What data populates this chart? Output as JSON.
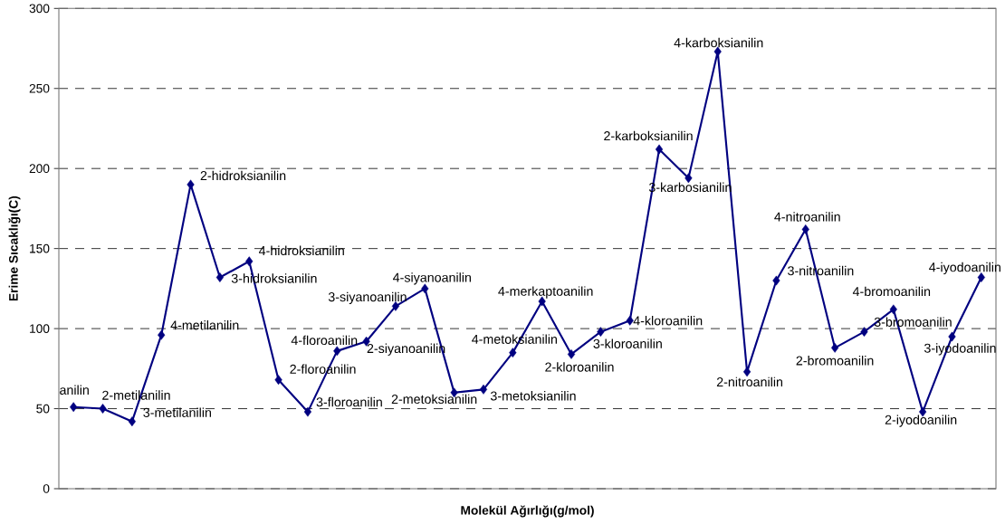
{
  "chart_data": {
    "type": "line",
    "xlabel": "Molekül Ağırlığı(g/mol)",
    "ylabel": "Erime Sıcaklığı(C)",
    "categories": [
      null,
      null,
      null,
      null,
      null,
      null,
      null,
      null,
      null,
      null,
      null,
      null,
      null,
      null,
      null,
      null,
      null,
      null,
      null,
      null,
      null,
      null,
      null,
      null,
      null,
      null,
      null,
      null,
      null,
      null,
      null,
      null
    ],
    "series": [
      {
        "color": "#000080",
        "values": [
          51,
          50,
          42,
          96,
          190,
          132,
          142,
          68,
          48,
          86,
          92,
          114,
          125,
          60,
          62,
          85,
          117,
          84,
          98,
          105,
          212,
          194,
          273,
          73,
          130,
          162,
          88,
          98,
          112,
          48,
          95,
          132
        ]
      }
    ],
    "ylim": [
      0,
      300
    ],
    "yticks": [
      0,
      50,
      100,
      150,
      200,
      250,
      300
    ],
    "grid": "y",
    "marker": "diamond",
    "line_style": "solid",
    "annotations": [
      "anilin",
      "2-metilanilin",
      "3-metilanilin",
      "4-metilanilin",
      "2-hidroksianilin",
      "3-hidroksianilin",
      "4-hidroksianilin",
      "2-floroanilin",
      "3-floroanilin",
      "4-floroanilin",
      "2-siyanoanilin",
      "3-siyanoanilin",
      "4-siyanoanilin",
      "2-metoksianilin",
      "3-metoksianilin",
      "4-metoksianilin",
      "4-merkaptoanilin",
      "2-kloroanilin",
      "3-kloroanilin",
      "4-kloroanilin",
      "2-karboksianilin",
      "3-karbosianilin",
      "4-karboksianilin",
      "2-nitroanilin",
      "3-nitroanilin",
      "4-nitroanilin",
      "2-bromoanilin",
      "3-bromoanilin",
      "4-bromoanilin",
      "2-iyodoanilin",
      "3-iyodoanilin",
      "4-iyodoanilin"
    ]
  }
}
